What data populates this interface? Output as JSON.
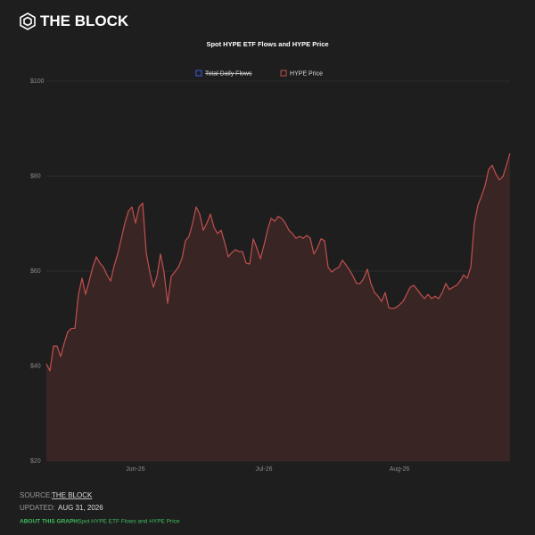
{
  "header": {
    "logo": "THE BLOCK"
  },
  "chart_data": {
    "type": "area",
    "title": "Spot HYPE ETF Flows and HYPE Price",
    "categories": [
      null,
      null,
      null,
      null,
      null,
      null,
      null,
      null,
      null,
      null,
      null,
      null,
      null,
      null,
      null,
      null,
      null,
      null,
      null,
      null,
      null,
      null,
      null,
      null,
      null,
      "Jun-26",
      null,
      null,
      null,
      null,
      null,
      null,
      null,
      null,
      null,
      null,
      null,
      null,
      null,
      null,
      null,
      null,
      null,
      null,
      null,
      null,
      null,
      null,
      null,
      null,
      null,
      null,
      null,
      null,
      null,
      null,
      null,
      null,
      null,
      null,
      null,
      "Jul-26",
      null,
      null,
      null,
      null,
      null,
      null,
      null,
      null,
      null,
      null,
      null,
      null,
      null,
      null,
      null,
      null,
      null,
      null,
      null,
      null,
      null,
      null,
      null,
      null,
      null,
      null,
      null,
      null,
      null,
      null,
      null,
      null,
      null,
      null,
      null,
      null,
      null,
      "Aug-26",
      null,
      null,
      null,
      null,
      null,
      null,
      null,
      null,
      null,
      null,
      null,
      null,
      null,
      null,
      null,
      null,
      null,
      null,
      null,
      null,
      null,
      null,
      null,
      null,
      null,
      null,
      null,
      null,
      null,
      null,
      null
    ],
    "series": [
      {
        "name": "Total Daily Flows",
        "color": "#3b5bdb",
        "hidden": true
      },
      {
        "name": "HYPE Price",
        "color": "#c0504d",
        "fill": "#3a2525",
        "values": [
          40.5,
          39.0,
          44.2,
          44.2,
          42.0,
          44.8,
          47.2,
          47.9,
          47.9,
          55.1,
          58.5,
          55.1,
          57.9,
          60.8,
          63.0,
          61.7,
          60.8,
          59.2,
          57.9,
          61.1,
          63.6,
          66.8,
          70.1,
          72.6,
          73.5,
          70.1,
          73.5,
          74.3,
          63.9,
          59.8,
          56.6,
          58.9,
          63.6,
          59.8,
          53.2,
          58.9,
          59.8,
          60.8,
          62.6,
          66.4,
          67.3,
          70.1,
          73.5,
          72.0,
          68.6,
          70.1,
          72.0,
          69.2,
          67.9,
          68.6,
          66.0,
          63.0,
          63.9,
          64.5,
          64.1,
          64.1,
          61.7,
          61.5,
          66.8,
          64.9,
          62.6,
          65.4,
          68.6,
          71.1,
          70.5,
          71.5,
          71.1,
          70.1,
          68.6,
          67.9,
          66.9,
          67.3,
          66.9,
          67.5,
          66.9,
          63.6,
          64.9,
          66.8,
          66.4,
          60.8,
          59.8,
          60.4,
          60.8,
          62.3,
          61.3,
          60.2,
          58.9,
          57.4,
          57.4,
          58.5,
          60.4,
          57.4,
          55.5,
          54.7,
          53.6,
          55.5,
          52.3,
          52.1,
          52.3,
          52.9,
          53.6,
          55.1,
          56.6,
          57.0,
          56.1,
          55.1,
          54.2,
          55.1,
          54.2,
          54.7,
          54.2,
          55.5,
          57.4,
          56.1,
          56.6,
          57.0,
          57.9,
          59.2,
          58.5,
          60.8,
          70.1,
          73.9,
          75.8,
          78.0,
          81.4,
          82.3,
          80.5,
          79.2,
          79.9,
          82.3,
          84.8
        ]
      }
    ],
    "ylim": [
      20,
      100
    ],
    "yticks": [
      {
        "value": 20,
        "label": "$20"
      },
      {
        "value": 40,
        "label": "$40"
      },
      {
        "value": 60,
        "label": "$60"
      },
      {
        "value": 80,
        "label": "$80"
      },
      {
        "value": 100,
        "label": "$100"
      }
    ],
    "grid": true
  },
  "footer": {
    "source_label": "SOURCE:",
    "source": "THE BLOCK",
    "updated_label": "UPDATED:",
    "updated": "AUG 31, 2026",
    "about_label": "ABOUT THIS GRAPH:",
    "about": "Spot HYPE ETF Flows and HYPE Price"
  }
}
